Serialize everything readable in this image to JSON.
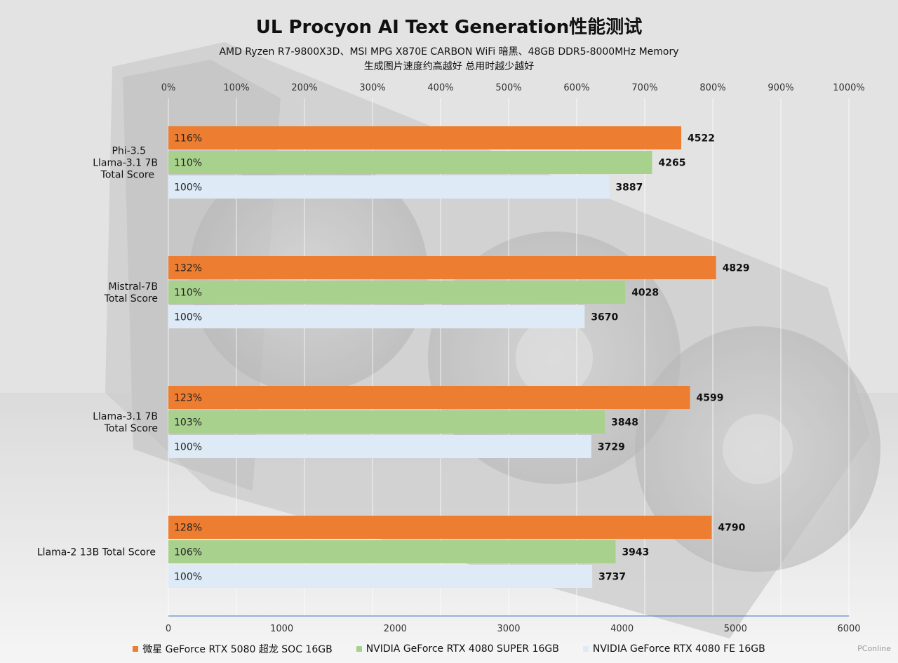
{
  "chart_data": {
    "type": "bar",
    "orientation": "horizontal",
    "title": "UL Procyon AI Text Generation性能测试",
    "subtitle_line1": "AMD Ryzen R7-9800X3D、MSI MPG X870E CARBON WiFi 暗黑、48GB DDR5-8000MHz Memory",
    "subtitle_line2": "生成图片速度约高越好 总用时越少越好",
    "categories": [
      [
        "Phi-3.5",
        "Llama-3.1 7B",
        "Total Score"
      ],
      [
        "Mistral-7B",
        "Total Score"
      ],
      [
        "Llama-3.1 7B",
        "Total Score"
      ],
      [
        "Llama-2 13B Total Score"
      ]
    ],
    "series": [
      {
        "name": "微星 GeForce RTX 5080 超龙 SOC 16GB",
        "color": "#ed7d31",
        "values": [
          4522,
          4829,
          4599,
          4790
        ],
        "percent_labels": [
          "116%",
          "132%",
          "123%",
          "128%"
        ]
      },
      {
        "name": "NVIDIA GeForce RTX 4080 SUPER 16GB",
        "color": "#a9d18e",
        "values": [
          4265,
          4028,
          3848,
          3943
        ],
        "percent_labels": [
          "110%",
          "110%",
          "103%",
          "106%"
        ]
      },
      {
        "name": "NVIDIA GeForce RTX 4080 FE 16GB",
        "color": "#deebf7",
        "values": [
          3887,
          3670,
          3729,
          3737
        ],
        "percent_labels": [
          "100%",
          "100%",
          "100%",
          "100%"
        ]
      }
    ],
    "x_primary": {
      "range": [
        0,
        6000
      ],
      "ticks": [
        "0",
        "1000",
        "2000",
        "3000",
        "4000",
        "5000",
        "6000"
      ]
    },
    "x_secondary": {
      "range": [
        0,
        1000
      ],
      "ticks": [
        "0%",
        "100%",
        "200%",
        "300%",
        "400%",
        "500%",
        "600%",
        "700%",
        "800%",
        "900%",
        "1000%"
      ]
    },
    "grid": true,
    "legend_position": "bottom"
  },
  "watermark": "PConline"
}
